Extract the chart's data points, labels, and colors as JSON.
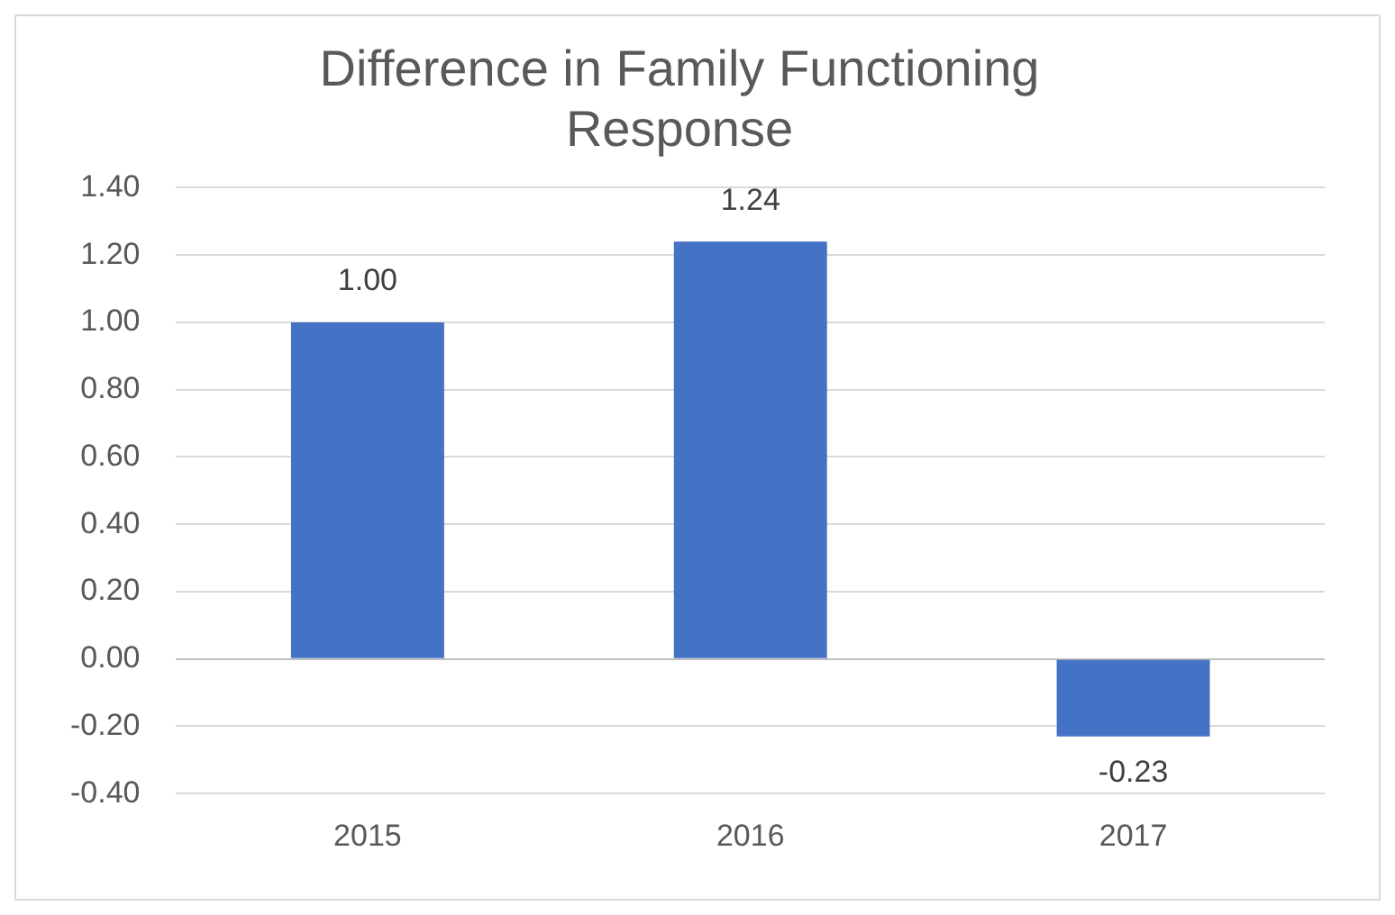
{
  "chart_data": {
    "type": "bar",
    "title": "Difference in Family Functioning Response",
    "categories": [
      "2015",
      "2016",
      "2017"
    ],
    "values": [
      1.0,
      1.24,
      -0.23
    ],
    "color": "#4472c4",
    "value_labels": [
      "1.00",
      "1.24",
      "-0.23"
    ],
    "ylim": [
      -0.4,
      1.4
    ],
    "yticks": [
      {
        "value": -0.4,
        "label": "-0.40"
      },
      {
        "value": -0.2,
        "label": "-0.20"
      },
      {
        "value": 0,
        "label": "0.00"
      },
      {
        "value": 0.2,
        "label": "0.20"
      },
      {
        "value": 0.4,
        "label": "0.40"
      },
      {
        "value": 0.6,
        "label": "0.60"
      },
      {
        "value": 0.8,
        "label": "0.80"
      },
      {
        "value": 1.0,
        "label": "1.00"
      },
      {
        "value": 1.2,
        "label": "1.20"
      },
      {
        "value": 1.4,
        "label": "1.40"
      }
    ],
    "grid": "y",
    "legend": false
  }
}
